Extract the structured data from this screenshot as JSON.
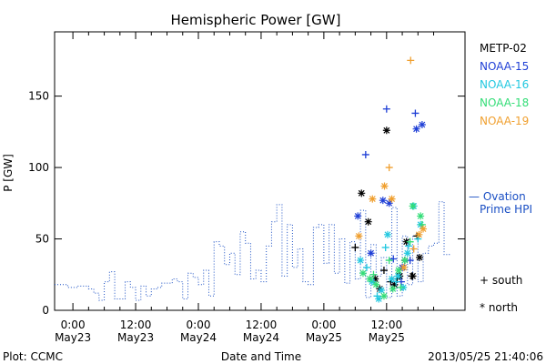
{
  "chart_data": {
    "type": "scatter",
    "title": "Hemispheric Power [GW]",
    "xlabel": "Date and Time",
    "ylabel": "P [GW]",
    "x_unit": "hours",
    "xlim": [
      -3.5,
      75
    ],
    "ylim": [
      0,
      195
    ],
    "y_ticks": [
      0,
      50,
      100,
      150
    ],
    "x_ticks": [
      {
        "x": 0,
        "line1": "0:00",
        "line2": "May23"
      },
      {
        "x": 12,
        "line1": "12:00",
        "line2": "May23"
      },
      {
        "x": 24,
        "line1": "0:00",
        "line2": "May24"
      },
      {
        "x": 36,
        "line1": "12:00",
        "line2": "May24"
      },
      {
        "x": 48,
        "line1": "0:00",
        "line2": "May25"
      },
      {
        "x": 60,
        "line1": "12:00",
        "line2": "May25"
      }
    ],
    "legend": {
      "placement": "right",
      "satellites": [
        {
          "name": "METP-02",
          "color": "#000000"
        },
        {
          "name": "NOAA-15",
          "color": "#1f3fd6"
        },
        {
          "name": "NOAA-16",
          "color": "#22c8e0"
        },
        {
          "name": "NOAA-18",
          "color": "#33dd77"
        },
        {
          "name": "NOAA-19",
          "color": "#f0a030"
        }
      ],
      "ovation_line1": "— Ovation",
      "ovation_line2": "Prime HPI",
      "ovation_color": "#1a4fc4",
      "south_label": "+ south",
      "north_label": "* north"
    },
    "series": [
      {
        "name": "Ovation Prime HPI",
        "kind": "step-dotted",
        "x": [
          -3.5,
          -1,
          1,
          3,
          4,
          5,
          6,
          7,
          8,
          9,
          10,
          11,
          12,
          13,
          14,
          15,
          16,
          17,
          18,
          19,
          20,
          21,
          22,
          23,
          24,
          25,
          26,
          27,
          28,
          29,
          30,
          31,
          32,
          33,
          34,
          35,
          36,
          37,
          38,
          39,
          40,
          41,
          42,
          43,
          44,
          45,
          46,
          47,
          48,
          49,
          50,
          51,
          52,
          53,
          54,
          55,
          56,
          57,
          58,
          59,
          60,
          61,
          62,
          63,
          64,
          65,
          66,
          67,
          68,
          69,
          70,
          71,
          72
        ],
        "y": [
          18,
          16,
          17,
          15,
          12,
          7,
          20,
          27,
          8,
          8,
          20,
          16,
          7,
          17,
          10,
          15,
          16,
          19,
          19,
          22,
          20,
          8,
          26,
          23,
          18,
          28,
          10,
          48,
          45,
          32,
          40,
          25,
          55,
          47,
          22,
          28,
          20,
          45,
          62,
          74,
          24,
          60,
          30,
          43,
          20,
          18,
          58,
          60,
          33,
          60,
          26,
          50,
          19,
          48,
          22,
          70,
          9,
          46,
          24,
          37,
          9,
          72,
          10,
          52,
          18,
          52,
          20,
          40,
          45,
          47,
          76,
          39,
          40
        ]
      },
      {
        "name": "METP-02",
        "hemisphere": "north",
        "x": [
          55.2,
          56.5,
          57.8,
          58.7,
          60,
          61.5,
          62.5,
          63.8,
          65,
          66.3
        ],
        "y": [
          82,
          62,
          22,
          15,
          126,
          18,
          24,
          48,
          24,
          37
        ]
      },
      {
        "name": "METP-02",
        "hemisphere": "south",
        "x": [
          54,
          59.5,
          60.8,
          62,
          63.5,
          64.8,
          65.8
        ],
        "y": [
          44,
          28,
          20,
          22,
          35,
          24,
          52
        ]
      },
      {
        "name": "NOAA-15",
        "hemisphere": "south",
        "x": [
          56,
          60,
          61.3,
          62.8,
          64.5,
          65.5
        ],
        "y": [
          109,
          141,
          36,
          20,
          35,
          138
        ]
      },
      {
        "name": "NOAA-15",
        "hemisphere": "north",
        "x": [
          54.5,
          57,
          59.3,
          60.5,
          63,
          65.7,
          66.8
        ],
        "y": [
          66,
          40,
          77,
          75,
          30,
          127,
          130
        ]
      },
      {
        "name": "NOAA-16",
        "hemisphere": "north",
        "x": [
          55,
          57.2,
          58.5,
          59,
          60.2,
          61,
          62.2,
          63.2,
          64,
          65.2,
          66.5
        ],
        "y": [
          35,
          20,
          8,
          14,
          53,
          22,
          24,
          16,
          40,
          73,
          60
        ]
      },
      {
        "name": "NOAA-16",
        "hemisphere": "south",
        "x": [
          56.2,
          58.2,
          59.8,
          61.8,
          64.2,
          66
        ],
        "y": [
          30,
          10,
          44,
          20,
          45,
          50
        ]
      },
      {
        "name": "NOAA-18",
        "hemisphere": "north",
        "x": [
          55.5,
          56.8,
          58,
          59.5,
          61.2,
          62.3,
          63.5,
          65,
          66.5
        ],
        "y": [
          26,
          22,
          18,
          10,
          15,
          28,
          35,
          73,
          66
        ]
      },
      {
        "name": "NOAA-18",
        "hemisphere": "south",
        "x": [
          57.5,
          60.5,
          62.7,
          64.5,
          66.8
        ],
        "y": [
          25,
          35,
          16,
          48,
          60
        ]
      },
      {
        "name": "NOAA-19",
        "hemisphere": "north",
        "x": [
          54.7,
          57.3,
          59.6,
          61,
          63.3,
          66.2,
          67
        ],
        "y": [
          52,
          78,
          87,
          78,
          30,
          53,
          57
        ]
      },
      {
        "name": "NOAA-19",
        "hemisphere": "south",
        "x": [
          60.5,
          64.6,
          65.2
        ],
        "y": [
          100,
          175,
          43
        ]
      }
    ]
  },
  "footer": {
    "plot_label": "Plot: CCMC",
    "timestamp": "2013/05/25 21:40:06"
  }
}
